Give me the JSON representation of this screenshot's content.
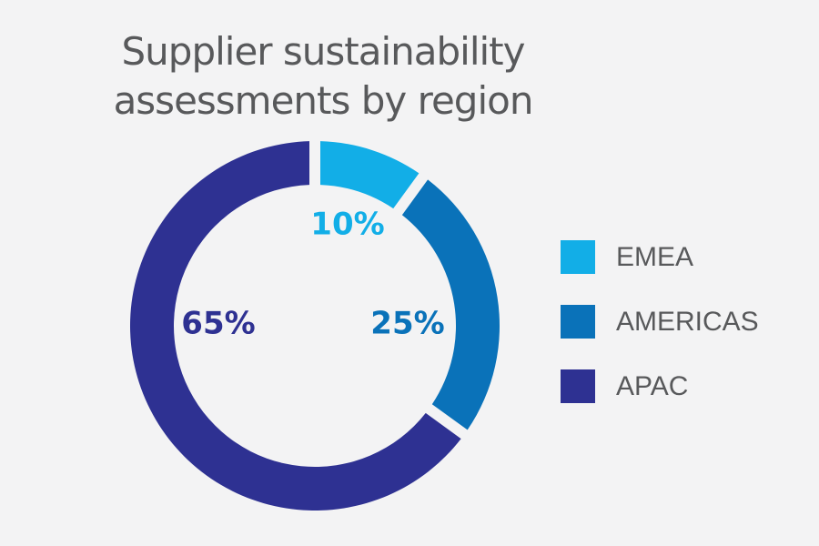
{
  "chart_data": {
    "type": "pie",
    "title_lines": [
      "Supplier sustainability",
      "assessments by region"
    ],
    "categories": [
      "EMEA",
      "AMERICAS",
      "APAC"
    ],
    "values": [
      10,
      25,
      65
    ],
    "value_labels": [
      "10%",
      "25%",
      "65%"
    ],
    "colors": [
      "#12aee7",
      "#0a72b9",
      "#2e3192"
    ],
    "donut": true,
    "legend_position": "right",
    "background": "#f3f3f4"
  }
}
